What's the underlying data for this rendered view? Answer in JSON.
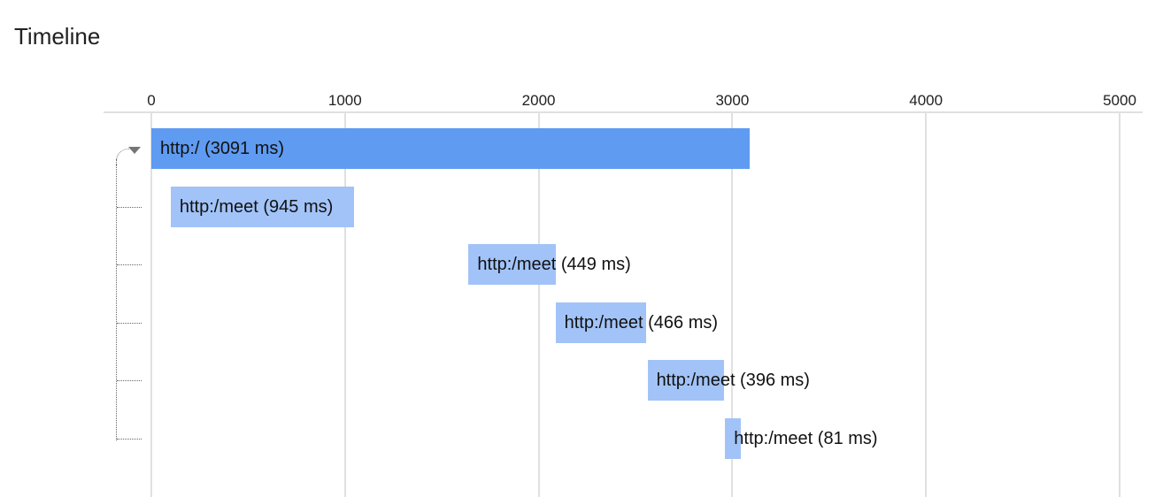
{
  "title": "Timeline",
  "axis": {
    "unit": "ms",
    "min": 0,
    "max": 5000,
    "ticks": [
      "0",
      "1000",
      "2000",
      "3000",
      "4000",
      "5000"
    ]
  },
  "colors": {
    "root_bar": "#5f9bf1",
    "child_bar": "#a2c3f8",
    "grid": "#e0e0e0"
  },
  "spans": [
    {
      "label": "http:/ (3091 ms)",
      "start_ms": 0,
      "duration_ms": 3091,
      "level": 0,
      "expanded": true
    },
    {
      "label": "http:/meet (945 ms)",
      "start_ms": 100,
      "duration_ms": 945,
      "level": 1
    },
    {
      "label": "http:/meet (449 ms)",
      "start_ms": 1638,
      "duration_ms": 449,
      "level": 1
    },
    {
      "label": "http:/meet (466 ms)",
      "start_ms": 2087,
      "duration_ms": 466,
      "level": 1
    },
    {
      "label": "http:/meet (396 ms)",
      "start_ms": 2562,
      "duration_ms": 396,
      "level": 1
    },
    {
      "label": "http:/meet (81 ms)",
      "start_ms": 2963,
      "duration_ms": 81,
      "level": 1
    }
  ]
}
